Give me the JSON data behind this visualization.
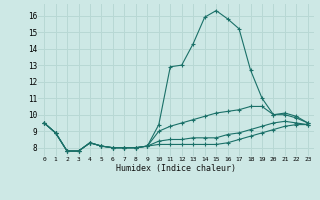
{
  "xlabel": "Humidex (Indice chaleur)",
  "background_color": "#cde8e5",
  "grid_color": "#b8d8d4",
  "line_color": "#1a7068",
  "xlim": [
    -0.5,
    23.5
  ],
  "ylim": [
    7.5,
    16.7
  ],
  "xticks": [
    0,
    1,
    2,
    3,
    4,
    5,
    6,
    7,
    8,
    9,
    10,
    11,
    12,
    13,
    14,
    15,
    16,
    17,
    18,
    19,
    20,
    21,
    22,
    23
  ],
  "yticks": [
    8,
    9,
    10,
    11,
    12,
    13,
    14,
    15,
    16
  ],
  "series": [
    [
      9.5,
      8.9,
      7.8,
      7.8,
      8.3,
      8.1,
      8.0,
      8.0,
      8.0,
      8.1,
      9.4,
      12.9,
      13.0,
      14.3,
      15.9,
      16.3,
      15.8,
      15.2,
      12.7,
      11.0,
      10.0,
      10.1,
      9.9,
      9.5
    ],
    [
      9.5,
      8.9,
      7.8,
      7.8,
      8.3,
      8.1,
      8.0,
      8.0,
      8.0,
      8.1,
      9.0,
      9.3,
      9.5,
      9.7,
      9.9,
      10.1,
      10.2,
      10.3,
      10.5,
      10.5,
      10.0,
      10.0,
      9.8,
      9.5
    ],
    [
      9.5,
      8.9,
      7.8,
      7.8,
      8.3,
      8.1,
      8.0,
      8.0,
      8.0,
      8.1,
      8.4,
      8.5,
      8.5,
      8.6,
      8.6,
      8.6,
      8.8,
      8.9,
      9.1,
      9.3,
      9.5,
      9.6,
      9.5,
      9.4
    ],
    [
      9.5,
      8.9,
      7.8,
      7.8,
      8.3,
      8.1,
      8.0,
      8.0,
      8.0,
      8.1,
      8.2,
      8.2,
      8.2,
      8.2,
      8.2,
      8.2,
      8.3,
      8.5,
      8.7,
      8.9,
      9.1,
      9.3,
      9.4,
      9.4
    ]
  ],
  "xlabels": [
    "0",
    "1",
    "2",
    "3",
    "4",
    "5",
    "6",
    "7",
    "8",
    "9",
    "10",
    "11",
    "12",
    "13",
    "14",
    "15",
    "16",
    "17",
    "18",
    "19",
    "20",
    "21",
    "22",
    "23"
  ]
}
